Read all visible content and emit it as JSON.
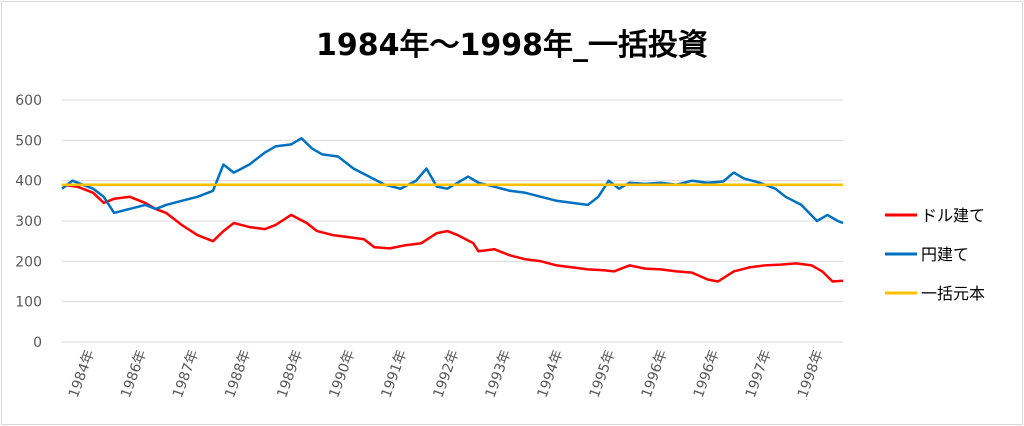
{
  "chart_data": {
    "type": "line",
    "title": "1984年～1998年_一括投資",
    "xlabel": "",
    "ylabel": "",
    "ylim": [
      0,
      600
    ],
    "yticks": [
      0,
      100,
      200,
      300,
      400,
      500,
      600
    ],
    "xlim": [
      1984.0,
      1999.0
    ],
    "x_tick_labels": [
      "1984年",
      "1986年",
      "1987年",
      "1988年",
      "1989年",
      "1990年",
      "1991年",
      "1992年",
      "1993年",
      "1994年",
      "1995年",
      "1996年",
      "1996年",
      "1997年",
      "1998年"
    ],
    "grid": true,
    "legend_position": "right",
    "series": [
      {
        "name": "ドル建て",
        "color": "#ff0000",
        "points": [
          [
            1984.0,
            390
          ],
          [
            1984.3,
            385
          ],
          [
            1984.6,
            370
          ],
          [
            1984.8,
            345
          ],
          [
            1985.0,
            355
          ],
          [
            1985.3,
            360
          ],
          [
            1985.6,
            345
          ],
          [
            1985.8,
            330
          ],
          [
            1986.0,
            320
          ],
          [
            1986.3,
            290
          ],
          [
            1986.6,
            265
          ],
          [
            1986.9,
            250
          ],
          [
            1987.1,
            275
          ],
          [
            1987.3,
            295
          ],
          [
            1987.6,
            285
          ],
          [
            1987.9,
            280
          ],
          [
            1988.1,
            290
          ],
          [
            1988.4,
            315
          ],
          [
            1988.7,
            295
          ],
          [
            1988.9,
            275
          ],
          [
            1989.2,
            265
          ],
          [
            1989.5,
            260
          ],
          [
            1989.8,
            255
          ],
          [
            1990.0,
            235
          ],
          [
            1990.3,
            232
          ],
          [
            1990.6,
            240
          ],
          [
            1990.9,
            245
          ],
          [
            1991.2,
            270
          ],
          [
            1991.4,
            275
          ],
          [
            1991.6,
            265
          ],
          [
            1991.9,
            245
          ],
          [
            1992.0,
            225
          ],
          [
            1992.3,
            230
          ],
          [
            1992.6,
            215
          ],
          [
            1992.9,
            205
          ],
          [
            1993.2,
            200
          ],
          [
            1993.5,
            190
          ],
          [
            1993.8,
            185
          ],
          [
            1994.1,
            180
          ],
          [
            1994.4,
            178
          ],
          [
            1994.6,
            175
          ],
          [
            1994.9,
            190
          ],
          [
            1995.2,
            182
          ],
          [
            1995.5,
            180
          ],
          [
            1995.8,
            175
          ],
          [
            1996.1,
            172
          ],
          [
            1996.4,
            155
          ],
          [
            1996.6,
            150
          ],
          [
            1996.9,
            175
          ],
          [
            1997.2,
            185
          ],
          [
            1997.5,
            190
          ],
          [
            1997.8,
            192
          ],
          [
            1998.1,
            195
          ],
          [
            1998.4,
            190
          ],
          [
            1998.6,
            175
          ],
          [
            1998.8,
            150
          ],
          [
            1999.0,
            152
          ]
        ]
      },
      {
        "name": "円建て",
        "color": "#0070c0",
        "points": [
          [
            1984.0,
            380
          ],
          [
            1984.2,
            400
          ],
          [
            1984.4,
            390
          ],
          [
            1984.6,
            380
          ],
          [
            1984.8,
            360
          ],
          [
            1985.0,
            320
          ],
          [
            1985.3,
            330
          ],
          [
            1985.6,
            340
          ],
          [
            1985.8,
            330
          ],
          [
            1986.0,
            340
          ],
          [
            1986.3,
            350
          ],
          [
            1986.6,
            360
          ],
          [
            1986.9,
            375
          ],
          [
            1987.1,
            440
          ],
          [
            1987.3,
            420
          ],
          [
            1987.6,
            440
          ],
          [
            1987.9,
            470
          ],
          [
            1988.1,
            485
          ],
          [
            1988.4,
            490
          ],
          [
            1988.6,
            505
          ],
          [
            1988.8,
            480
          ],
          [
            1989.0,
            465
          ],
          [
            1989.3,
            460
          ],
          [
            1989.6,
            430
          ],
          [
            1989.9,
            410
          ],
          [
            1990.2,
            390
          ],
          [
            1990.5,
            380
          ],
          [
            1990.8,
            400
          ],
          [
            1991.0,
            430
          ],
          [
            1991.2,
            385
          ],
          [
            1991.4,
            380
          ],
          [
            1991.6,
            395
          ],
          [
            1991.8,
            410
          ],
          [
            1992.0,
            395
          ],
          [
            1992.3,
            385
          ],
          [
            1992.6,
            375
          ],
          [
            1992.9,
            370
          ],
          [
            1993.2,
            360
          ],
          [
            1993.5,
            350
          ],
          [
            1993.8,
            345
          ],
          [
            1994.1,
            340
          ],
          [
            1994.3,
            360
          ],
          [
            1994.5,
            400
          ],
          [
            1994.7,
            380
          ],
          [
            1994.9,
            395
          ],
          [
            1995.2,
            392
          ],
          [
            1995.5,
            395
          ],
          [
            1995.8,
            390
          ],
          [
            1996.1,
            400
          ],
          [
            1996.4,
            395
          ],
          [
            1996.7,
            398
          ],
          [
            1996.9,
            420
          ],
          [
            1997.1,
            405
          ],
          [
            1997.4,
            395
          ],
          [
            1997.7,
            380
          ],
          [
            1997.9,
            360
          ],
          [
            1998.2,
            340
          ],
          [
            1998.5,
            300
          ],
          [
            1998.7,
            315
          ],
          [
            1998.9,
            300
          ],
          [
            1999.0,
            295
          ]
        ]
      },
      {
        "name": "一括元本",
        "color": "#ffc000",
        "points": [
          [
            1984.0,
            390
          ],
          [
            1999.0,
            390
          ]
        ]
      }
    ]
  }
}
